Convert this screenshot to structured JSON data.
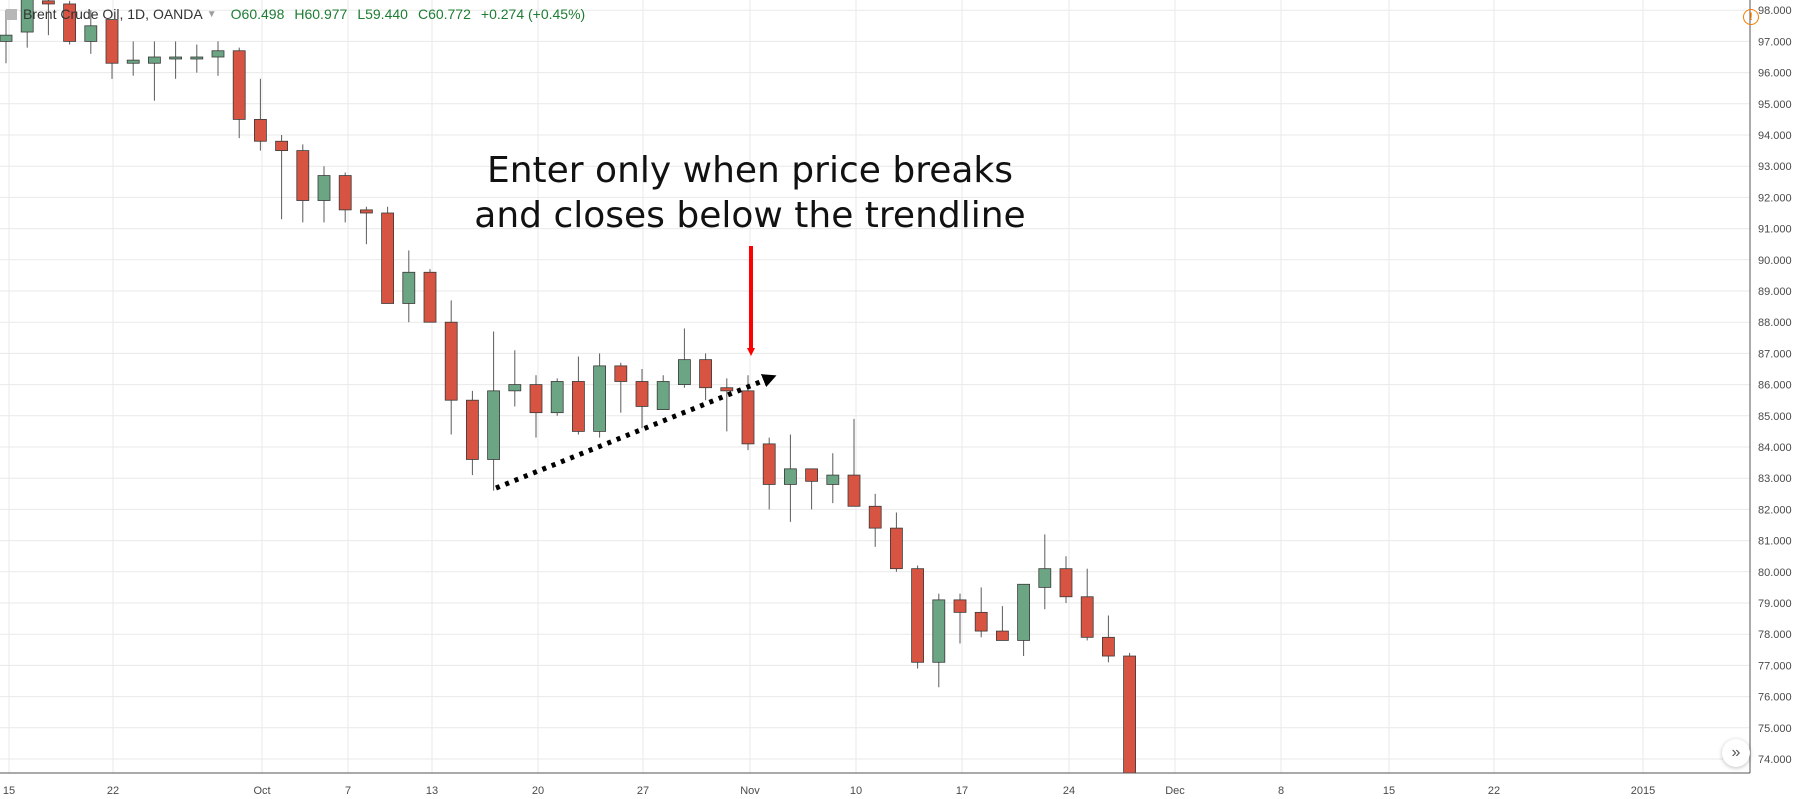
{
  "legend": {
    "symbol": "Brent Crude Oil, 1D, OANDA",
    "open_key": "O",
    "open": "60.498",
    "high_key": "H",
    "high": "60.977",
    "low_key": "L",
    "low": "59.440",
    "close_key": "C",
    "close": "60.772",
    "change": "+0.274 (+0.45%)"
  },
  "annotation": {
    "line1": "Enter only when price breaks",
    "line2": "and closes below the trendline"
  },
  "icons": {
    "alert": "exclamation-circle-icon",
    "scroll": "double-chevron-right-icon"
  },
  "colors": {
    "up": "#6ba583",
    "down": "#d75442",
    "wick": "#5b5b5b",
    "grid": "#e9e9ea",
    "arrow": "#ff0000",
    "trendline": "#000000"
  },
  "chart_data": {
    "type": "candlestick",
    "ylim": [
      73.5,
      98.2
    ],
    "y_ticks": [
      "74.000",
      "75.000",
      "76.000",
      "77.000",
      "78.000",
      "79.000",
      "80.000",
      "81.000",
      "82.000",
      "83.000",
      "84.000",
      "85.000",
      "86.000",
      "87.000",
      "88.000",
      "89.000",
      "90.000",
      "91.000",
      "92.000",
      "93.000",
      "94.000",
      "95.000",
      "96.000",
      "97.000",
      "98.000"
    ],
    "x_labels": [
      "15",
      "22",
      "Oct",
      "7",
      "13",
      "20",
      "27",
      "Nov",
      "10",
      "17",
      "24",
      "Dec",
      "8",
      "15",
      "22",
      "2015"
    ],
    "candles": [
      {
        "o": 97.0,
        "h": 98.0,
        "l": 96.3,
        "c": 97.2
      },
      {
        "o": 97.3,
        "h": 98.5,
        "l": 96.8,
        "c": 98.5
      },
      {
        "o": 98.3,
        "h": 98.6,
        "l": 97.2,
        "c": 98.2
      },
      {
        "o": 98.2,
        "h": 98.3,
        "l": 96.9,
        "c": 97.0
      },
      {
        "o": 97.0,
        "h": 98.0,
        "l": 96.6,
        "c": 97.5
      },
      {
        "o": 97.7,
        "h": 97.7,
        "l": 95.8,
        "c": 96.3
      },
      {
        "o": 96.3,
        "h": 97.0,
        "l": 95.9,
        "c": 96.4
      },
      {
        "o": 96.3,
        "h": 97.0,
        "l": 95.1,
        "c": 96.5
      },
      {
        "o": 96.5,
        "h": 97.0,
        "l": 95.8,
        "c": 96.5
      },
      {
        "o": 96.5,
        "h": 96.9,
        "l": 96.0,
        "c": 96.5
      },
      {
        "o": 96.5,
        "h": 97.0,
        "l": 95.9,
        "c": 96.7
      },
      {
        "o": 96.7,
        "h": 96.8,
        "l": 93.9,
        "c": 94.5
      },
      {
        "o": 94.5,
        "h": 95.8,
        "l": 93.5,
        "c": 93.8
      },
      {
        "o": 93.8,
        "h": 94.0,
        "l": 91.3,
        "c": 93.5
      },
      {
        "o": 93.5,
        "h": 93.7,
        "l": 91.2,
        "c": 91.9
      },
      {
        "o": 91.9,
        "h": 93.0,
        "l": 91.2,
        "c": 92.7
      },
      {
        "o": 92.7,
        "h": 92.8,
        "l": 91.2,
        "c": 91.6
      },
      {
        "o": 91.6,
        "h": 91.7,
        "l": 90.5,
        "c": 91.5
      },
      {
        "o": 91.5,
        "h": 91.7,
        "l": 88.6,
        "c": 88.6
      },
      {
        "o": 88.6,
        "h": 90.3,
        "l": 88.0,
        "c": 89.6
      },
      {
        "o": 89.6,
        "h": 89.7,
        "l": 88.0,
        "c": 88.0
      },
      {
        "o": 88.0,
        "h": 88.7,
        "l": 84.4,
        "c": 85.5
      },
      {
        "o": 85.5,
        "h": 85.8,
        "l": 83.1,
        "c": 83.6
      },
      {
        "o": 83.6,
        "h": 87.7,
        "l": 82.6,
        "c": 85.8
      },
      {
        "o": 85.8,
        "h": 87.1,
        "l": 85.3,
        "c": 86.0
      },
      {
        "o": 86.0,
        "h": 86.3,
        "l": 84.3,
        "c": 85.1
      },
      {
        "o": 85.1,
        "h": 86.2,
        "l": 85.0,
        "c": 86.1
      },
      {
        "o": 86.1,
        "h": 86.9,
        "l": 84.4,
        "c": 84.5
      },
      {
        "o": 84.5,
        "h": 87.0,
        "l": 84.3,
        "c": 86.6
      },
      {
        "o": 86.6,
        "h": 86.7,
        "l": 85.1,
        "c": 86.1
      },
      {
        "o": 86.1,
        "h": 86.5,
        "l": 84.6,
        "c": 85.3
      },
      {
        "o": 85.2,
        "h": 86.3,
        "l": 85.2,
        "c": 86.1
      },
      {
        "o": 86.0,
        "h": 87.8,
        "l": 85.9,
        "c": 86.8
      },
      {
        "o": 86.8,
        "h": 87.0,
        "l": 85.5,
        "c": 85.9
      },
      {
        "o": 85.9,
        "h": 86.2,
        "l": 84.5,
        "c": 85.8
      },
      {
        "o": 85.8,
        "h": 86.3,
        "l": 83.9,
        "c": 84.1
      },
      {
        "o": 84.1,
        "h": 84.3,
        "l": 82.0,
        "c": 82.8
      },
      {
        "o": 82.8,
        "h": 84.4,
        "l": 81.6,
        "c": 83.3
      },
      {
        "o": 83.3,
        "h": 83.3,
        "l": 82.0,
        "c": 82.9
      },
      {
        "o": 82.8,
        "h": 83.8,
        "l": 82.2,
        "c": 83.1
      },
      {
        "o": 83.1,
        "h": 84.9,
        "l": 82.1,
        "c": 82.1
      },
      {
        "o": 82.1,
        "h": 82.5,
        "l": 80.8,
        "c": 81.4
      },
      {
        "o": 81.4,
        "h": 81.9,
        "l": 80.0,
        "c": 80.1
      },
      {
        "o": 80.1,
        "h": 80.2,
        "l": 76.9,
        "c": 77.1
      },
      {
        "o": 77.1,
        "h": 79.3,
        "l": 76.3,
        "c": 79.1
      },
      {
        "o": 79.1,
        "h": 79.3,
        "l": 77.7,
        "c": 78.7
      },
      {
        "o": 78.7,
        "h": 79.5,
        "l": 77.9,
        "c": 78.1
      },
      {
        "o": 78.1,
        "h": 78.9,
        "l": 77.8,
        "c": 77.8
      },
      {
        "o": 77.8,
        "h": 79.6,
        "l": 77.3,
        "c": 79.6
      },
      {
        "o": 79.5,
        "h": 81.2,
        "l": 78.8,
        "c": 80.1
      },
      {
        "o": 80.1,
        "h": 80.5,
        "l": 79.0,
        "c": 79.2
      },
      {
        "o": 79.2,
        "h": 80.1,
        "l": 77.8,
        "c": 77.9
      },
      {
        "o": 77.9,
        "h": 78.6,
        "l": 77.1,
        "c": 77.3
      },
      {
        "o": 77.3,
        "h": 77.4,
        "l": 73.5,
        "c": 73.5
      }
    ]
  }
}
